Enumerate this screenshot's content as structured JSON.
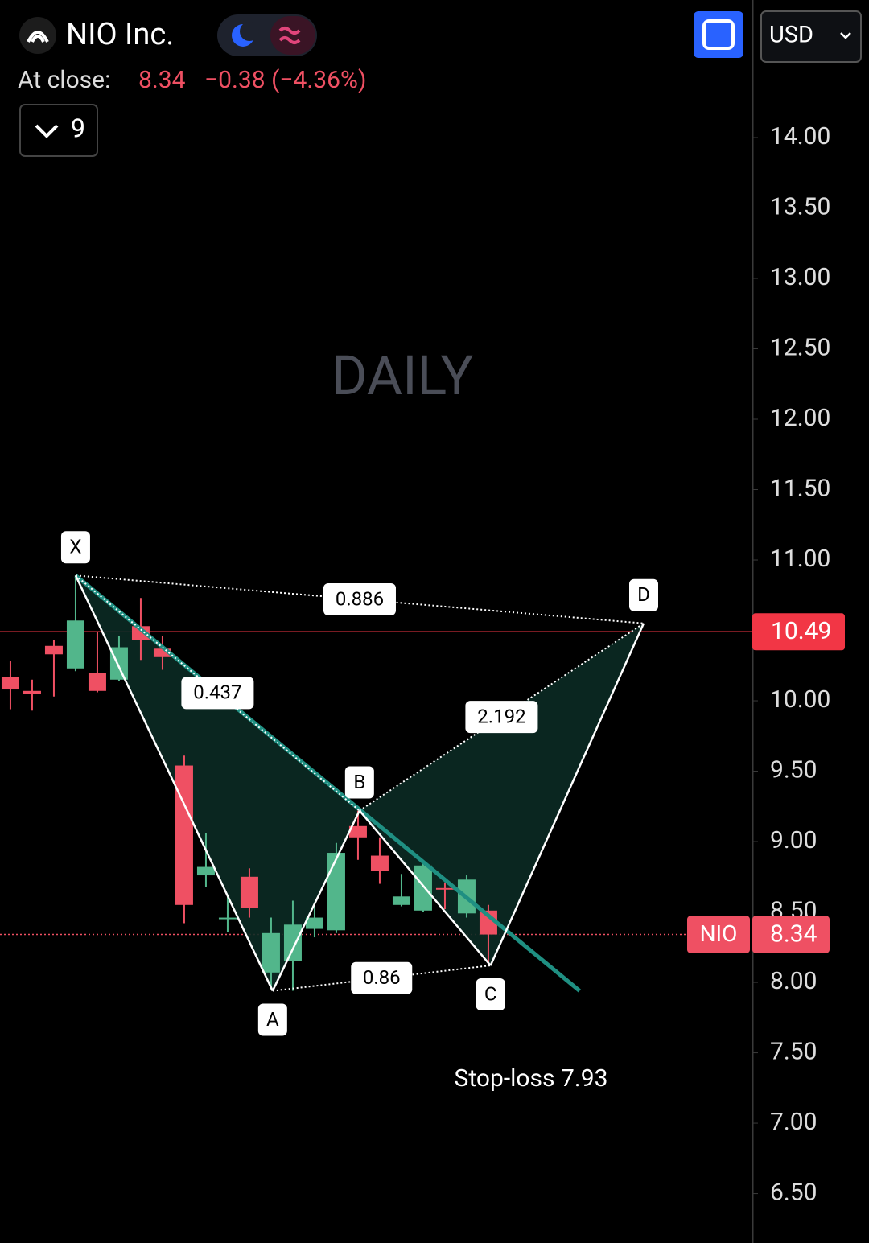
{
  "header": {
    "symbol": "NIO Inc.",
    "at_close": "At close:",
    "close": "8.34",
    "change": "−0.38 (−4.36%)",
    "indicators": "9",
    "currency": "USD"
  },
  "chart_data": {
    "type": "candlestick",
    "watermark": "DAILY",
    "categories": [
      null,
      null,
      null,
      null,
      null,
      null,
      null,
      null,
      null,
      null,
      null,
      null,
      null,
      null,
      null,
      null,
      null,
      null,
      null,
      null,
      null,
      null,
      null
    ],
    "open": [
      10.17,
      10.07,
      10.39,
      10.23,
      10.2,
      10.15,
      10.53,
      10.37,
      9.54,
      8.76,
      8.45,
      8.75,
      8.07,
      8.15,
      8.38,
      8.37,
      9.11,
      8.9,
      8.55,
      8.51,
      8.67,
      8.49,
      8.51
    ],
    "high": [
      10.28,
      10.15,
      10.43,
      10.89,
      10.49,
      10.46,
      10.73,
      10.46,
      9.61,
      9.06,
      8.62,
      8.81,
      8.46,
      8.58,
      8.55,
      8.99,
      9.22,
      9.03,
      8.77,
      8.85,
      8.71,
      8.76,
      8.55
    ],
    "low": [
      9.94,
      9.93,
      10.03,
      10.21,
      10.06,
      10.14,
      10.29,
      10.22,
      8.42,
      8.68,
      8.36,
      8.46,
      7.95,
      7.94,
      8.32,
      8.35,
      8.87,
      8.7,
      8.54,
      8.5,
      8.52,
      8.46,
      8.13
    ],
    "close": [
      10.08,
      10.05,
      10.33,
      10.57,
      10.07,
      10.38,
      10.43,
      10.31,
      8.55,
      8.82,
      8.46,
      8.53,
      8.35,
      8.41,
      8.46,
      8.92,
      9.03,
      8.79,
      8.61,
      8.83,
      8.66,
      8.73,
      8.34
    ],
    "up_color": "#52b68b",
    "down_color": "#ef5063",
    "xlim": [
      -0.48,
      34.15
    ],
    "ylim": [
      6.149,
      14.977
    ],
    "yticks": [
      {
        "value": 6.5,
        "label": "6.50"
      },
      {
        "value": 7,
        "label": "7.00"
      },
      {
        "value": 7.5,
        "label": "7.50"
      },
      {
        "value": 8,
        "label": "8.00"
      },
      {
        "value": 8.5,
        "label": "8.50"
      },
      {
        "value": 9,
        "label": "9.00"
      },
      {
        "value": 9.5,
        "label": "9.50"
      },
      {
        "value": 10,
        "label": "10.00"
      },
      {
        "value": 10.5,
        "label": "10.50"
      },
      {
        "value": 11,
        "label": "11.00"
      },
      {
        "value": 11.5,
        "label": "11.50"
      },
      {
        "value": 12,
        "label": "12.00"
      },
      {
        "value": 12.5,
        "label": "12.50"
      },
      {
        "value": 13,
        "label": "13.00"
      },
      {
        "value": 13.5,
        "label": "13.50"
      },
      {
        "value": 14,
        "label": "14.00"
      }
    ],
    "pattern": {
      "labels": [
        "X",
        "A",
        "B",
        "C",
        "D"
      ],
      "x": [
        3,
        12.07,
        16.07,
        22.1,
        29.15
      ],
      "y": [
        10.89,
        7.94,
        9.22,
        8.12,
        10.55
      ],
      "ratios": [
        0.437,
        0.86,
        2.192,
        0.886
      ],
      "fill": "#0b2a23"
    },
    "trendline": {
      "x": [
        3,
        26.2
      ],
      "y": [
        10.89,
        7.94
      ],
      "color": "#1f8f82"
    },
    "hline": {
      "value": 10.49,
      "color": "#f23645"
    },
    "last_price": {
      "symbol": "NIO",
      "value": 8.34
    },
    "annotation": "Stop-loss 7.93"
  }
}
